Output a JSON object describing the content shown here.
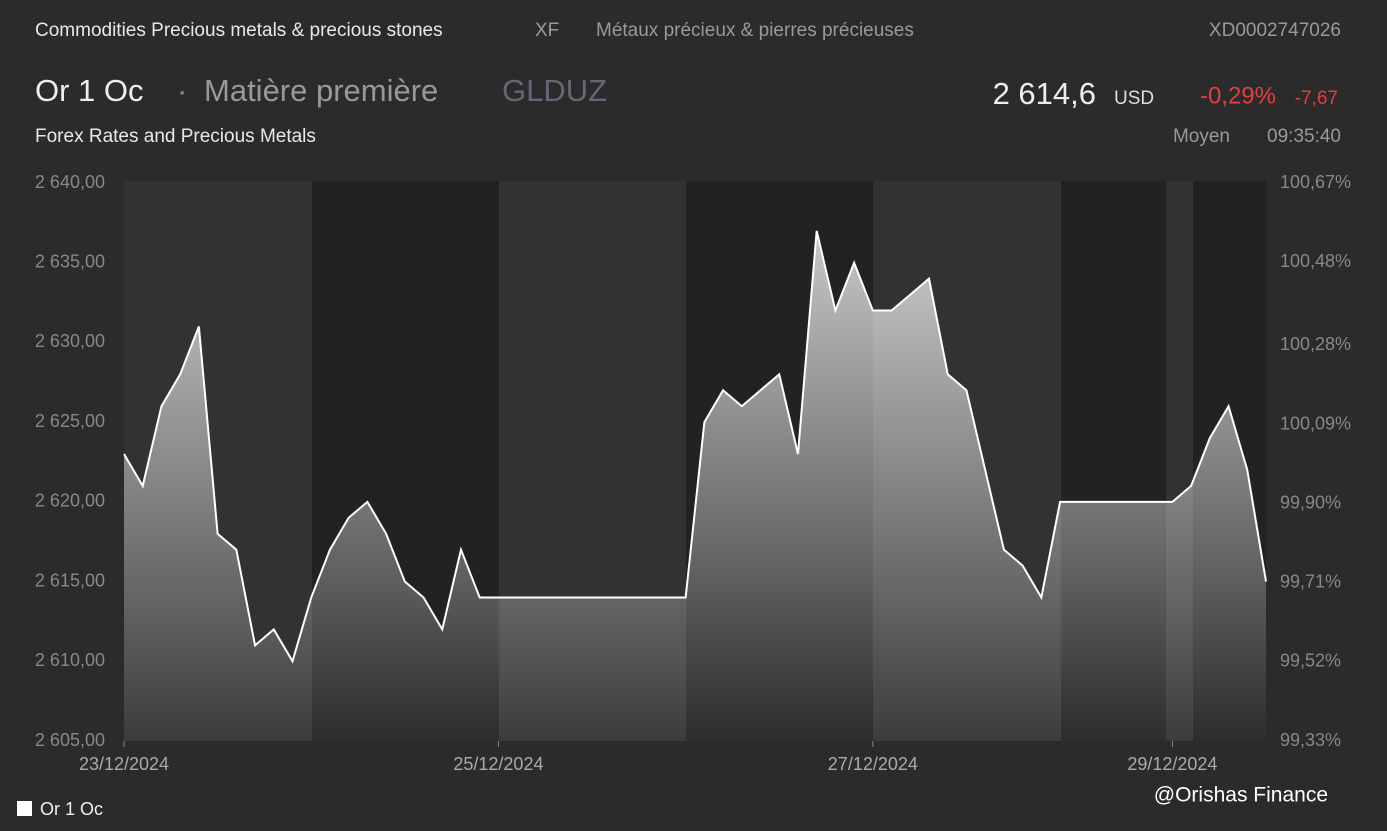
{
  "header": {
    "category": "Commodities Precious metals & precious stones",
    "exchange": "XF",
    "category_fr": "Métaux précieux & pierres précieuses",
    "isin": "XD0002747026",
    "name": "Or 1 Oc",
    "kind": "Matière première",
    "ticker": "GLDUZ",
    "price": "2 614,6",
    "currency": "USD",
    "change_pct": "-0,29%",
    "change": "-7,67",
    "source": "Forex Rates and Precious Metals",
    "quote_type": "Moyen",
    "time": "09:35:40",
    "watermark": "@Orishas Finance"
  },
  "chart_data": {
    "type": "area",
    "categories": [
      "23/12/2024",
      null,
      null,
      null,
      null,
      null,
      null,
      null,
      null,
      null,
      null,
      null,
      null,
      null,
      null,
      null,
      null,
      null,
      null,
      null,
      "25/12/2024",
      null,
      null,
      null,
      null,
      null,
      null,
      null,
      null,
      null,
      null,
      null,
      null,
      null,
      null,
      null,
      null,
      null,
      null,
      null,
      "27/12/2024",
      null,
      null,
      null,
      null,
      null,
      null,
      null,
      null,
      null,
      null,
      null,
      null,
      null,
      null,
      null,
      "29/12/2024",
      null,
      null,
      null,
      null,
      null
    ],
    "series": [
      {
        "name": "Or 1 Oc",
        "color": "#ffffff",
        "values": [
          2623,
          2621,
          2626,
          2628,
          2631,
          2618,
          2617,
          2611,
          2612,
          2610,
          2614,
          2617,
          2619,
          2620,
          2618,
          2615,
          2614,
          2612,
          2617,
          2614,
          2614,
          2614,
          2614,
          2614,
          2614,
          2614,
          2614,
          2614,
          2614,
          2614,
          2614,
          2625,
          2627,
          2626,
          2627,
          2628,
          2623,
          2637,
          2632,
          2635,
          2632,
          2632,
          2633,
          2634,
          2628,
          2627,
          2622,
          2617,
          2616,
          2614,
          2620,
          2620,
          2620,
          2620,
          2620,
          2620,
          2620,
          2621,
          2624,
          2626,
          2622,
          2615
        ]
      }
    ],
    "ylim": [
      2605,
      2640
    ],
    "yticks": [
      {
        "value": 2605,
        "label": "2 605,00"
      },
      {
        "value": 2610,
        "label": "2 610,00"
      },
      {
        "value": 2615,
        "label": "2 615,00"
      },
      {
        "value": 2620,
        "label": "2 620,00"
      },
      {
        "value": 2625,
        "label": "2 625,00"
      },
      {
        "value": 2630,
        "label": "2 630,00"
      },
      {
        "value": 2635,
        "label": "2 635,00"
      },
      {
        "value": 2640,
        "label": "2 640,00"
      }
    ],
    "y2lim": [
      99.33,
      100.67
    ],
    "y2ticks": [
      {
        "value": 99.33,
        "label": "99,33%"
      },
      {
        "value": 99.52,
        "label": "99,52%"
      },
      {
        "value": 99.71,
        "label": "99,71%"
      },
      {
        "value": 99.9,
        "label": "99,90%"
      },
      {
        "value": 100.09,
        "label": "100,09%"
      },
      {
        "value": 100.28,
        "label": "100,28%"
      },
      {
        "value": 100.48,
        "label": "100,48%"
      },
      {
        "value": 100.67,
        "label": "100,67%"
      }
    ],
    "legend": "bottom-left"
  }
}
